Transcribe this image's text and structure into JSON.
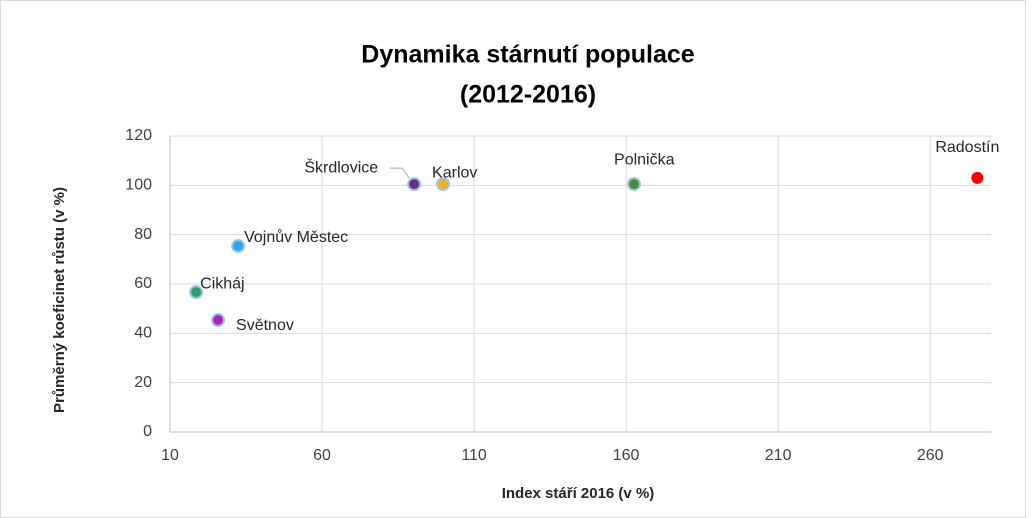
{
  "chart_data": {
    "type": "scatter",
    "title": [
      "Dynamika stárnutí populace",
      "(2012-2016)"
    ],
    "x_label": "Index stáří 2016 (v %)",
    "y_label": "Průměrný koeficinet růstu (v %)",
    "points": [
      {
        "name": "Cikháj",
        "x": 18.6,
        "y": 56.7,
        "color": "#2e9e6a"
      },
      {
        "name": "Světnov",
        "x": 25.8,
        "y": 45.4,
        "color": "#b023b8"
      },
      {
        "name": "Vojnův Městec",
        "x": 32.4,
        "y": 75.4,
        "color": "#28a8e8"
      },
      {
        "name": "Škrdlovice",
        "x": 90.3,
        "y": 100.5,
        "color": "#6a2d8f"
      },
      {
        "name": "Karlov",
        "x": 99.8,
        "y": 100.5,
        "color": "#f0b020"
      },
      {
        "name": "Polnička",
        "x": 162.6,
        "y": 100.5,
        "color": "#4a8c3a"
      },
      {
        "name": "Radostín",
        "x": 275.5,
        "y": 103,
        "color": "#ff0000"
      }
    ],
    "xlim": [
      10,
      280
    ],
    "xticks": [
      10,
      60,
      110,
      160,
      210,
      260
    ],
    "ylim": [
      0,
      120
    ],
    "yticks": [
      0,
      20,
      40,
      60,
      80,
      100,
      120
    ],
    "grid": true
  }
}
